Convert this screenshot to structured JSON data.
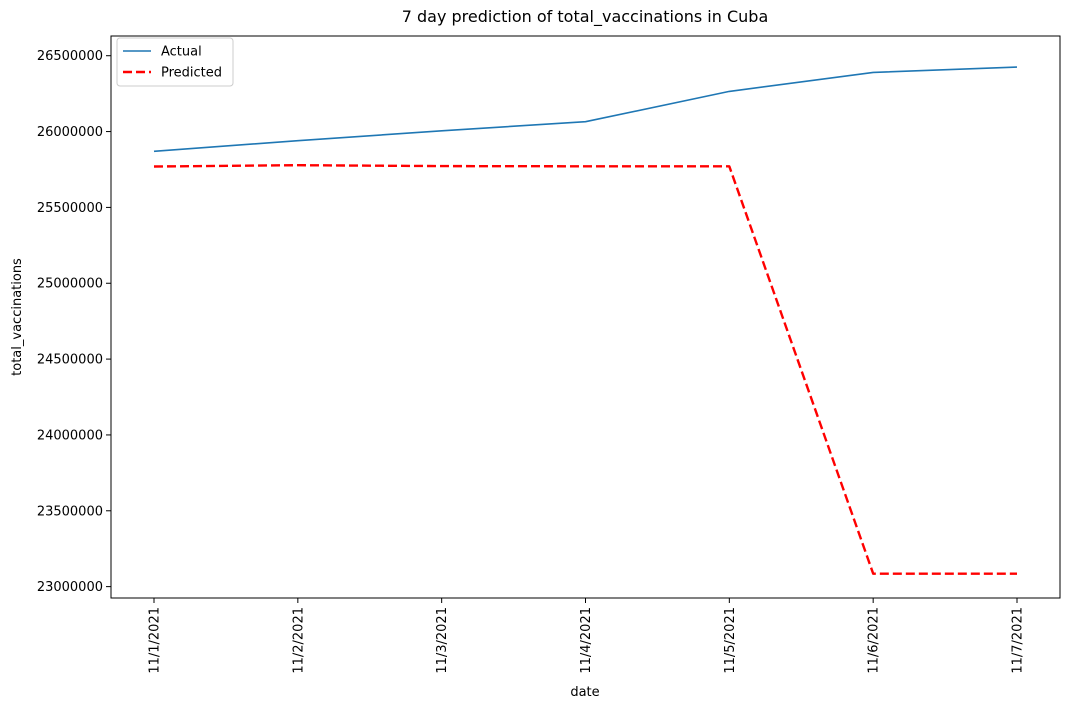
{
  "chart_data": {
    "type": "line",
    "title": "7 day prediction of total_vaccinations in Cuba",
    "xlabel": "date",
    "ylabel": "total_vaccinations",
    "categories": [
      "11/1/2021",
      "11/2/2021",
      "11/3/2021",
      "11/4/2021",
      "11/5/2021",
      "11/6/2021",
      "11/7/2021"
    ],
    "yticks": [
      23000000,
      23500000,
      24000000,
      24500000,
      25000000,
      25500000,
      26000000,
      26500000
    ],
    "ytick_labels": [
      "23000000",
      "23500000",
      "24000000",
      "24500000",
      "25000000",
      "25500000",
      "26000000",
      "26500000"
    ],
    "ylim": [
      22925000,
      26630000
    ],
    "grid": false,
    "legend_position": "top-left",
    "series": [
      {
        "name": "Actual",
        "color": "#1f77b4",
        "style": "solid",
        "values": [
          25870000,
          25940000,
          26005000,
          26065000,
          26265000,
          26390000,
          26425000
        ]
      },
      {
        "name": "Predicted",
        "color": "#ff0000",
        "style": "dashed",
        "values": [
          25770000,
          25778000,
          25772000,
          25771000,
          25771000,
          23085000,
          23085000
        ]
      }
    ]
  }
}
